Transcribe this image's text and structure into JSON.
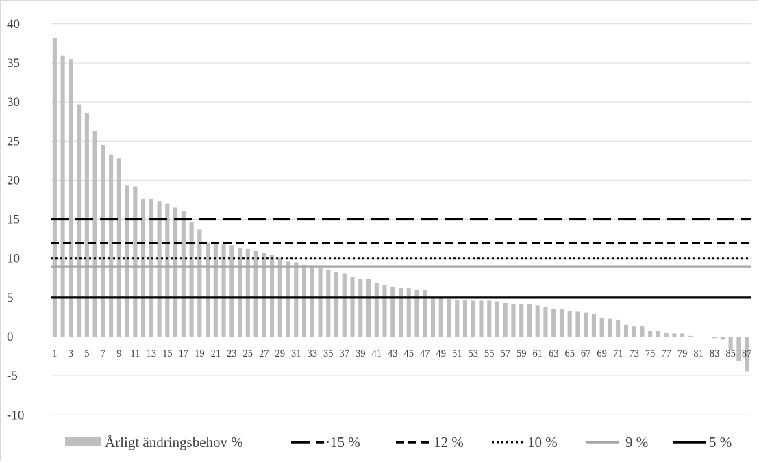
{
  "chart_data": {
    "type": "bar",
    "categories": [
      "1",
      "2",
      "3",
      "4",
      "5",
      "6",
      "7",
      "8",
      "9",
      "10",
      "11",
      "12",
      "13",
      "14",
      "15",
      "16",
      "17",
      "18",
      "19",
      "20",
      "21",
      "22",
      "23",
      "24",
      "25",
      "26",
      "27",
      "28",
      "29",
      "30",
      "31",
      "32",
      "33",
      "34",
      "35",
      "36",
      "37",
      "38",
      "39",
      "40",
      "41",
      "42",
      "43",
      "44",
      "45",
      "46",
      "47",
      "48",
      "49",
      "50",
      "51",
      "52",
      "53",
      "54",
      "55",
      "56",
      "57",
      "58",
      "59",
      "60",
      "61",
      "62",
      "63",
      "64",
      "65",
      "66",
      "67",
      "68",
      "69",
      "70",
      "71",
      "72",
      "73",
      "74",
      "75",
      "76",
      "77",
      "78",
      "79",
      "80",
      "81",
      "82",
      "83",
      "84",
      "85",
      "86",
      "87"
    ],
    "x_tick_labels": [
      "1",
      "3",
      "5",
      "7",
      "9",
      "11",
      "13",
      "15",
      "17",
      "19",
      "21",
      "23",
      "25",
      "27",
      "29",
      "31",
      "33",
      "35",
      "37",
      "39",
      "41",
      "43",
      "45",
      "47",
      "49",
      "51",
      "53",
      "55",
      "57",
      "59",
      "61",
      "63",
      "65",
      "67",
      "69",
      "71",
      "73",
      "75",
      "77",
      "79",
      "81",
      "83",
      "85",
      "87"
    ],
    "series": [
      {
        "name": "Årligt ändringsbehov %",
        "color": "#bfbfbf",
        "values": [
          38.2,
          35.9,
          35.5,
          29.7,
          28.6,
          26.3,
          24.5,
          23.3,
          22.8,
          19.3,
          19.2,
          17.6,
          17.6,
          17.3,
          17.0,
          16.5,
          16.0,
          14.7,
          13.7,
          12.0,
          11.9,
          11.8,
          11.7,
          11.3,
          11.2,
          11.0,
          10.7,
          10.5,
          10.1,
          9.6,
          9.5,
          9.2,
          9.1,
          8.8,
          8.6,
          8.3,
          8.1,
          7.7,
          7.4,
          7.4,
          6.9,
          6.6,
          6.4,
          6.2,
          6.2,
          6.0,
          6.0,
          5.0,
          5.0,
          4.8,
          4.7,
          4.7,
          4.6,
          4.6,
          4.6,
          4.5,
          4.3,
          4.2,
          4.2,
          4.2,
          4.0,
          3.8,
          3.5,
          3.5,
          3.3,
          3.2,
          3.1,
          2.9,
          2.4,
          2.3,
          2.2,
          1.5,
          1.3,
          1.3,
          0.8,
          0.7,
          0.5,
          0.4,
          0.4,
          0.1,
          0.0,
          0.0,
          -0.2,
          -0.4,
          -1.7,
          -3.1,
          -4.4
        ]
      }
    ],
    "reference_lines": [
      {
        "name": "·15 %",
        "value": 15,
        "style": "long-dash",
        "color": "#000000"
      },
      {
        "name": "12 %",
        "value": 12,
        "style": "dash",
        "color": "#000000"
      },
      {
        "name": "10 %",
        "value": 10,
        "style": "dot",
        "color": "#000000"
      },
      {
        "name": "9 %",
        "value": 9,
        "style": "solid",
        "color": "#a6a6a6"
      },
      {
        "name": "5 %",
        "value": 5,
        "style": "solid",
        "color": "#000000"
      }
    ],
    "y_ticks": [
      "-10",
      "-5",
      "0",
      "5",
      "10",
      "15",
      "20",
      "25",
      "30",
      "35",
      "40"
    ],
    "ylim": [
      -10,
      40
    ],
    "grid": true,
    "legend": "bottom"
  }
}
